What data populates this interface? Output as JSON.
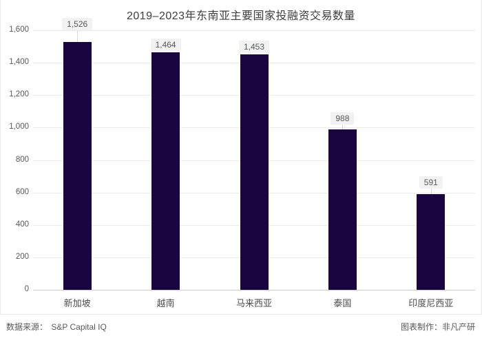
{
  "chart_data": {
    "type": "bar",
    "title": "2019–2023年东南亚主要国家投融资交易数量",
    "categories": [
      "新加坡",
      "越南",
      "马来西亚",
      "泰国",
      "印度尼西亚"
    ],
    "values": [
      1526,
      1464,
      1453,
      988,
      591
    ],
    "value_labels": [
      "1,526",
      "1,464",
      "1,453",
      "988",
      "591"
    ],
    "xlabel": "",
    "ylabel": "",
    "ylim": [
      0,
      1600
    ],
    "ytick_step": 200,
    "ytick_labels": [
      "0",
      "200",
      "400",
      "600",
      "800",
      "1,000",
      "1,200",
      "1,400",
      "1,600"
    ],
    "grid": true,
    "legend": "none",
    "bar_color": "#190540"
  },
  "footer": {
    "source_label": "数据来源：",
    "source_value": "S&P Capital IQ",
    "credit": "图表制作：非凡产研"
  },
  "colors": {
    "bar": "#190540",
    "gridline": "#ebebeb",
    "axis_line": "#c9c9c9",
    "title_text": "#3d3d3d",
    "tick_text": "#595959",
    "value_label_bg": "#f2f2f2",
    "card_border": "#e9e9e9"
  }
}
